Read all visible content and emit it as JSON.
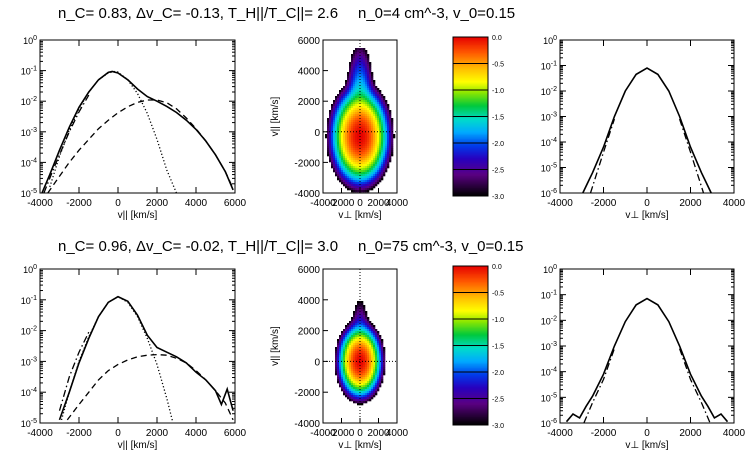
{
  "figure": {
    "rows": [
      {
        "header_left": "n_C= 0.83, Δv_C= -0.13, T_H||/T_C||= 2.6",
        "header_right": "n_0=4 cm^-3, v_0=0.15",
        "n_c": 0.83,
        "dv_c": -0.13,
        "t_ratio": 2.6,
        "n0": 4,
        "v0": 0.15
      },
      {
        "header_left": "n_C= 0.96, Δv_C= -0.02, T_H||/T_C||= 3.0",
        "header_right": "n_0=75 cm^-3, v_0=0.15",
        "n_c": 0.96,
        "dv_c": -0.02,
        "t_ratio": 3.0,
        "n0": 75,
        "v0": 0.15
      }
    ]
  },
  "chart_data": [
    {
      "id": "r1_par",
      "type": "line",
      "xlabel": "v|| [km/s]",
      "ylabel": "",
      "xlim": [
        -4000,
        6000
      ],
      "ylim_log10": [
        -5,
        0
      ],
      "yscale": "log",
      "xticks": [
        -4000,
        -2000,
        0,
        2000,
        4000,
        6000
      ],
      "xtick_labels": [
        "-4000",
        "-2000",
        "0",
        "2000",
        "4000",
        "6000"
      ],
      "ytick_labels": [
        "10^-5",
        "10^-4",
        "10^-3",
        "10^-2",
        "10^-1",
        "10^0"
      ],
      "series": [
        {
          "style": "solid",
          "x": [
            -3900,
            -3500,
            -3000,
            -2500,
            -2000,
            -1500,
            -1000,
            -500,
            -300,
            0,
            500,
            1000,
            1500,
            2000,
            2500,
            3000,
            3500,
            4000,
            4500,
            5000,
            5500,
            5900
          ],
          "log10y": [
            -5.0,
            -4.4,
            -3.6,
            -2.85,
            -2.2,
            -1.7,
            -1.3,
            -1.06,
            -1.03,
            -1.08,
            -1.3,
            -1.6,
            -1.85,
            -2.0,
            -2.17,
            -2.37,
            -2.62,
            -2.92,
            -3.3,
            -3.75,
            -4.3,
            -4.9
          ]
        },
        {
          "style": "dotted",
          "x": [
            -3500,
            -3000,
            -2500,
            -2000,
            -1500,
            -1000,
            -500,
            -200,
            0,
            500,
            1000,
            1500,
            2000,
            2500,
            3000
          ],
          "log10y": [
            -4.8,
            -3.8,
            -2.95,
            -2.25,
            -1.7,
            -1.3,
            -1.08,
            -1.03,
            -1.05,
            -1.3,
            -1.75,
            -2.4,
            -3.25,
            -4.25,
            -5.0
          ]
        },
        {
          "style": "dashed",
          "x": [
            -3600,
            -3000,
            -2500,
            -2000,
            -1500,
            -1000,
            -500,
            0,
            500,
            1000,
            1500,
            2000,
            2500,
            3000,
            3500,
            4000,
            4500,
            5000,
            5500,
            5900
          ],
          "log10y": [
            -5.0,
            -4.45,
            -4.0,
            -3.6,
            -3.25,
            -2.9,
            -2.62,
            -2.38,
            -2.18,
            -2.04,
            -1.96,
            -1.96,
            -2.05,
            -2.25,
            -2.55,
            -2.9,
            -3.3,
            -3.75,
            -4.3,
            -4.85
          ]
        },
        {
          "style": "dashdot",
          "x": [
            -3800,
            -3300,
            -3000,
            -2500,
            -2000,
            -1500
          ],
          "log10y": [
            -5.0,
            -4.2,
            -3.75,
            -3.0,
            -2.35,
            -1.8
          ]
        }
      ]
    },
    {
      "id": "r1_2d",
      "type": "heatmap",
      "xlabel": "v⊥ [km/s]",
      "ylabel": "v|| [km/s]",
      "xlim": [
        -4000,
        4000
      ],
      "ylim": [
        -4000,
        6000
      ],
      "xticks": [
        -4000,
        -2000,
        0,
        2000,
        4000
      ],
      "xtick_labels": [
        "-4000",
        "-2000",
        "0",
        "2000",
        "4000"
      ],
      "yticks": [
        -4000,
        -2000,
        0,
        2000,
        4000,
        6000
      ],
      "ytick_labels": [
        "-4000",
        "-2000",
        "0",
        "2000",
        "4000",
        "6000"
      ],
      "colorbar": {
        "min": -3.0,
        "max": 0.0,
        "tick_labels": [
          "0.0",
          "-0.5",
          "-1.0",
          "-1.5",
          "-2.0",
          "-2.5",
          "-3.0"
        ]
      },
      "core_center_vpar": -300,
      "core_width_vperp": 1400,
      "core_width_vpar": 1400,
      "halo_center_vpar": 1800,
      "halo_width_vperp": 850,
      "halo_width_vpar": 2200,
      "halo_amp_log10": -1.6,
      "cutoff_log10": -3.0,
      "top_truncation_vpar": 5500
    },
    {
      "id": "r1_perp",
      "type": "line",
      "xlabel": "v⊥ [km/s]",
      "ylabel": "",
      "xlim": [
        -4000,
        4000
      ],
      "ylim_log10": [
        -6,
        0
      ],
      "yscale": "log",
      "xticks": [
        -4000,
        -2000,
        0,
        2000,
        4000
      ],
      "xtick_labels": [
        "-4000",
        "-2000",
        "0",
        "2000",
        "4000"
      ],
      "ytick_labels": [
        "10^-6",
        "10^-5",
        "10^-4",
        "10^-3",
        "10^-2",
        "10^-1",
        "10^0"
      ],
      "series": [
        {
          "style": "solid",
          "x": [
            -2950,
            -2700,
            -2500,
            -2000,
            -1500,
            -1000,
            -500,
            0,
            500,
            1000,
            1500,
            2000,
            2500,
            2700,
            2950
          ],
          "log10y": [
            -6.0,
            -5.55,
            -5.2,
            -4.2,
            -3.0,
            -2.0,
            -1.35,
            -1.1,
            -1.35,
            -2.0,
            -3.0,
            -4.2,
            -5.2,
            -5.55,
            -6.0
          ]
        },
        {
          "style": "dashdot",
          "x": [
            -2600,
            -2300,
            -2000,
            -1500
          ],
          "log10y": [
            -6.0,
            -5.2,
            -4.4,
            -3.1
          ]
        },
        {
          "style": "dashdot",
          "x": [
            1500,
            2000,
            2300,
            2600
          ],
          "log10y": [
            -3.1,
            -4.4,
            -5.2,
            -6.0
          ]
        }
      ]
    },
    {
      "id": "r2_par",
      "type": "line",
      "xlabel": "v|| [km/s]",
      "ylabel": "",
      "xlim": [
        -4000,
        6000
      ],
      "ylim_log10": [
        -5,
        0
      ],
      "yscale": "log",
      "xticks": [
        -4000,
        -2000,
        0,
        2000,
        4000,
        6000
      ],
      "xtick_labels": [
        "-4000",
        "-2000",
        "0",
        "2000",
        "4000",
        "6000"
      ],
      "ytick_labels": [
        "10^-5",
        "10^-4",
        "10^-3",
        "10^-2",
        "10^-1",
        "10^0"
      ],
      "series": [
        {
          "style": "solid",
          "x": [
            -3000,
            -2500,
            -2000,
            -1500,
            -1000,
            -500,
            0,
            500,
            1000,
            1500,
            2000,
            2500,
            3000,
            3500,
            4000,
            4500,
            5000,
            5300,
            5600,
            5900
          ],
          "log10y": [
            -4.9,
            -4.0,
            -3.05,
            -2.25,
            -1.55,
            -1.08,
            -0.9,
            -1.05,
            -1.5,
            -2.15,
            -2.55,
            -2.7,
            -2.85,
            -3.05,
            -3.35,
            -3.6,
            -3.95,
            -4.4,
            -3.9,
            -4.6
          ]
        },
        {
          "style": "dotted",
          "x": [
            -2900,
            -2500,
            -2000,
            -1500,
            -1000,
            -500,
            0,
            500,
            1000,
            1500,
            2000,
            2500,
            2800
          ],
          "log10y": [
            -4.9,
            -4.0,
            -3.0,
            -2.2,
            -1.55,
            -1.08,
            -0.9,
            -1.08,
            -1.55,
            -2.25,
            -3.1,
            -4.2,
            -4.95
          ]
        },
        {
          "style": "dashed",
          "x": [
            -2600,
            -2000,
            -1500,
            -1000,
            -500,
            0,
            500,
            1000,
            1500,
            2000,
            2500,
            3000,
            3500,
            4000,
            4500,
            5000,
            5500,
            5900
          ],
          "log10y": [
            -4.9,
            -4.4,
            -4.0,
            -3.6,
            -3.3,
            -3.1,
            -2.95,
            -2.85,
            -2.8,
            -2.78,
            -2.8,
            -2.9,
            -3.05,
            -3.3,
            -3.6,
            -3.95,
            -4.35,
            -4.9
          ]
        },
        {
          "style": "dashdot",
          "x": [
            -3000,
            -2500,
            -2000,
            -1500
          ],
          "log10y": [
            -4.6,
            -3.5,
            -2.7,
            -2.05
          ]
        }
      ]
    },
    {
      "id": "r2_2d",
      "type": "heatmap",
      "xlabel": "v⊥ [km/s]",
      "ylabel": "v|| [km/s]",
      "xlim": [
        -4000,
        4000
      ],
      "ylim": [
        -4000,
        6000
      ],
      "xticks": [
        -4000,
        -2000,
        0,
        2000,
        4000
      ],
      "xtick_labels": [
        "-4000",
        "-2000",
        "0",
        "2000",
        "4000"
      ],
      "yticks": [
        -4000,
        -2000,
        0,
        2000,
        4000,
        6000
      ],
      "ytick_labels": [
        "-4000",
        "-2000",
        "0",
        "2000",
        "4000",
        "6000"
      ],
      "colorbar": {
        "min": -3.0,
        "max": 0.0,
        "tick_labels": [
          "0.0",
          "-0.5",
          "-1.0",
          "-1.5",
          "-2.0",
          "-2.5",
          "-3.0"
        ]
      },
      "core_center_vpar": 0,
      "core_width_vperp": 1050,
      "core_width_vpar": 1050,
      "halo_center_vpar": 1200,
      "halo_width_vperp": 650,
      "halo_width_vpar": 1900,
      "halo_amp_log10": -2.1,
      "cutoff_log10": -3.0,
      "top_truncation_vpar": 5000
    },
    {
      "id": "r2_perp",
      "type": "line",
      "xlabel": "v⊥ [km/s]",
      "ylabel": "",
      "xlim": [
        -4000,
        4000
      ],
      "ylim_log10": [
        -6,
        0
      ],
      "yscale": "log",
      "xticks": [
        -4000,
        -2000,
        0,
        2000,
        4000
      ],
      "xtick_labels": [
        "-4000",
        "-2000",
        "0",
        "2000",
        "4000"
      ],
      "ytick_labels": [
        "10^-6",
        "10^-5",
        "10^-4",
        "10^-3",
        "10^-2",
        "10^-1",
        "10^0"
      ],
      "series": [
        {
          "style": "solid",
          "x": [
            -3700,
            -3400,
            -3100,
            -2800,
            -2500,
            -2000,
            -1500,
            -1000,
            -500,
            0,
            500,
            1000,
            1500,
            2000,
            2500,
            2800,
            3100,
            3400,
            3700
          ],
          "log10y": [
            -5.95,
            -5.65,
            -5.8,
            -5.35,
            -4.95,
            -4.1,
            -3.0,
            -2.05,
            -1.4,
            -1.15,
            -1.4,
            -2.05,
            -3.0,
            -4.1,
            -4.95,
            -5.35,
            -5.8,
            -5.65,
            -5.95
          ]
        },
        {
          "style": "dashdot",
          "x": [
            -2900,
            -2500,
            -2000,
            -1500
          ],
          "log10y": [
            -6.0,
            -5.2,
            -4.3,
            -3.1
          ]
        },
        {
          "style": "dashdot",
          "x": [
            1500,
            2000,
            2500,
            2900
          ],
          "log10y": [
            -3.1,
            -4.3,
            -5.2,
            -6.0
          ]
        }
      ]
    }
  ]
}
